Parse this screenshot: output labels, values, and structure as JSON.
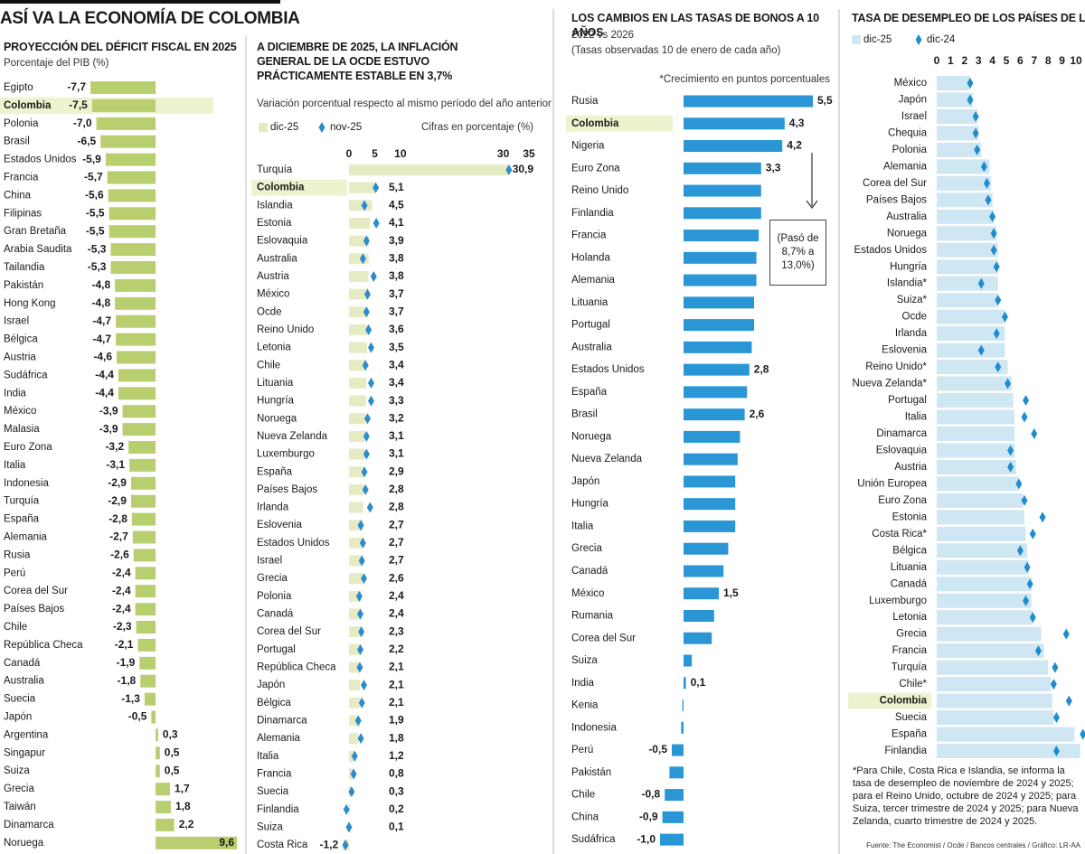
{
  "title": "ASÍ VA LA ECONOMÍA DE COLOMBIA",
  "source": "Fuente: The Economist / Ocde / Bancos centrales / Gráfico: LR-AA",
  "chart_data": [
    {
      "type": "bar",
      "orientation": "horizontal",
      "title": "PROYECCIÓN DEL DÉFICIT FISCAL EN 2025",
      "subtitle": "Porcentaje del PIB (%)",
      "highlight": "Colombia",
      "highlight_color": "#eef3cf",
      "color": "#b9cf6f",
      "categories": [
        "Egipto",
        "Colombia",
        "Polonia",
        "Brasil",
        "Estados Unidos",
        "Francia",
        "China",
        "Filipinas",
        "Gran Bretaña",
        "Arabia Saudita",
        "Tailandia",
        "Pakistán",
        "Hong Kong",
        "Israel",
        "Bélgica",
        "Austria",
        "Sudáfrica",
        "India",
        "México",
        "Malasia",
        "Euro Zona",
        "Italia",
        "Indonesia",
        "Turquía",
        "España",
        "Alemania",
        "Rusia",
        "Perú",
        "Corea del Sur",
        "Países Bajos",
        "Chile",
        "República Checa",
        "Canadá",
        "Australia",
        "Suecia",
        "Japón",
        "Argentina",
        "Singapur",
        "Suiza",
        "Grecia",
        "Taiwán",
        "Dinamarca",
        "Noruega"
      ],
      "values": [
        -7.7,
        -7.5,
        -7.0,
        -6.5,
        -5.9,
        -5.7,
        -5.6,
        -5.5,
        -5.5,
        -5.3,
        -5.3,
        -4.8,
        -4.8,
        -4.7,
        -4.7,
        -4.6,
        -4.4,
        -4.4,
        -3.9,
        -3.9,
        -3.2,
        -3.1,
        -2.9,
        -2.9,
        -2.8,
        -2.7,
        -2.6,
        -2.4,
        -2.4,
        -2.4,
        -2.3,
        -2.1,
        -1.9,
        -1.8,
        -1.3,
        -0.5,
        0.3,
        0.5,
        0.5,
        1.7,
        1.8,
        2.2,
        9.6
      ],
      "value_labels": [
        "-7,7",
        "-7,5",
        "-7,0",
        "-6,5",
        "-5,9",
        "-5,7",
        "-5,6",
        "-5,5",
        "-5,5",
        "-5,3",
        "-5,3",
        "-4,8",
        "-4,8",
        "-4,7",
        "-4,7",
        "-4,6",
        "-4,4",
        "-4,4",
        "-3,9",
        "-3,9",
        "-3,2",
        "-3,1",
        "-2,9",
        "-2,9",
        "-2,8",
        "-2,7",
        "-2,6",
        "-2,4",
        "-2,4",
        "-2,4",
        "-2,3",
        "-2,1",
        "-1,9",
        "-1,8",
        "-1,3",
        "-0,5",
        "0,3",
        "0,5",
        "0,5",
        "1,7",
        "1,8",
        "2,2",
        "9,6"
      ]
    },
    {
      "type": "bar",
      "orientation": "horizontal",
      "title": "A DICIEMBRE DE 2025, LA INFLACIÓN GENERAL DE LA OCDE ESTUVO PRÁCTICAMENTE ESTABLE EN 3,7%",
      "subtitle": "Variación porcentual respecto al mismo período del año anterior",
      "unit_label": "Cifras en porcentaje (%)",
      "highlight": "Colombia",
      "highlight_color": "#eef3cf",
      "xlim": [
        0,
        35
      ],
      "xticks": [
        0,
        5,
        10,
        30,
        35
      ],
      "categories": [
        "Turquía",
        "Colombia",
        "Islandia",
        "Estonia",
        "Eslovaquia",
        "Australia",
        "Austria",
        "México",
        "Ocde",
        "Reino Unido",
        "Letonia",
        "Chile",
        "Lituania",
        "Hungría",
        "Noruega",
        "Nueva Zelanda",
        "Luxemburgo",
        "España",
        "Países Bajos",
        "Irlanda",
        "Eslovenia",
        "Estados Unidos",
        "Israel",
        "Grecia",
        "Polonia",
        "Canadá",
        "Corea del Sur",
        "Portugal",
        "República Checa",
        "Japón",
        "Bélgica",
        "Dinamarca",
        "Alemania",
        "Italia",
        "Francia",
        "Suecia",
        "Finlandia",
        "Suiza",
        "Costa Rica"
      ],
      "series": [
        {
          "name": "dic-25",
          "color": "#e6ebc4",
          "marker": "bar",
          "values": [
            30.9,
            5.1,
            4.5,
            4.1,
            3.9,
            3.8,
            3.8,
            3.7,
            3.7,
            3.6,
            3.5,
            3.4,
            3.4,
            3.3,
            3.2,
            3.1,
            3.1,
            2.9,
            2.8,
            2.8,
            2.7,
            2.7,
            2.7,
            2.6,
            2.4,
            2.4,
            2.3,
            2.2,
            2.1,
            2.1,
            2.1,
            1.9,
            1.8,
            1.2,
            0.8,
            0.3,
            0.2,
            0.1,
            -1.2
          ],
          "value_labels": [
            "30,9",
            "5,1",
            "4,5",
            "4,1",
            "3,9",
            "3,8",
            "3,8",
            "3,7",
            "3,7",
            "3,6",
            "3,5",
            "3,4",
            "3,4",
            "3,3",
            "3,2",
            "3,1",
            "3,1",
            "2,9",
            "2,8",
            "2,8",
            "2,7",
            "2,7",
            "2,7",
            "2,6",
            "2,4",
            "2,4",
            "2,3",
            "2,2",
            "2,1",
            "2,1",
            "2,1",
            "1,9",
            "1,8",
            "1,2",
            "0,8",
            "0,3",
            "0,2",
            "0,1",
            "-1,2"
          ]
        },
        {
          "name": "nov-25",
          "color": "#2a8ccc",
          "marker": "diamond",
          "values": [
            31.1,
            5.2,
            3.0,
            5.3,
            3.4,
            2.7,
            4.8,
            3.6,
            3.4,
            3.8,
            4.3,
            3.2,
            4.3,
            4.3,
            3.6,
            3.4,
            3.4,
            3.0,
            3.2,
            4.1,
            2.3,
            2.7,
            2.5,
            2.9,
            2.0,
            2.2,
            2.4,
            2.2,
            2.1,
            2.9,
            2.5,
            1.8,
            2.3,
            1.1,
            0.9,
            0.5,
            -0.5,
            0.0,
            -0.7
          ]
        }
      ]
    },
    {
      "type": "bar",
      "orientation": "horizontal",
      "title": "LOS CAMBIOS EN LAS TASAS DE BONOS A 10 AÑOS",
      "subtitle": "2022 vs 2026",
      "note": "(Tasas observadas 10 de enero de cada año)",
      "unit_label": "*Crecimiento en puntos porcentuales",
      "annotation": "(Pasó de 8,7% a 13,0%)",
      "highlight": "Colombia",
      "highlight_color": "#eef3cf",
      "color": "#2a96d6",
      "categories": [
        "Rusia",
        "Colombia",
        "Nigeria",
        "Euro Zona",
        "Reino Unido",
        "Finlandia",
        "Francia",
        "Holanda",
        "Alemania",
        "Lituania",
        "Portugal",
        "Australia",
        "Estados Unidos",
        "España",
        "Brasil",
        "Noruega",
        "Nueva Zelanda",
        "Japón",
        "Hungría",
        "Italia",
        "Grecia",
        "Canadá",
        "México",
        "Rumania",
        "Corea del Sur",
        "Suiza",
        "India",
        "Kenia",
        "Indonesia",
        "Perú",
        "Pakistán",
        "Chile",
        "China",
        "Sudáfrica"
      ],
      "values": [
        5.5,
        4.3,
        4.2,
        3.3,
        3.3,
        3.3,
        3.2,
        3.1,
        3.1,
        3.0,
        3.0,
        2.9,
        2.8,
        2.7,
        2.6,
        2.4,
        2.3,
        2.2,
        2.2,
        2.2,
        1.9,
        1.7,
        1.5,
        1.3,
        1.2,
        0.35,
        0.1,
        -0.05,
        -0.1,
        -0.5,
        -0.6,
        -0.8,
        -0.9,
        -1.0
      ],
      "value_labels": [
        "5,5",
        "4,3",
        "4,2",
        "3,3",
        null,
        null,
        null,
        null,
        null,
        null,
        null,
        null,
        "2,8",
        null,
        "2,6",
        null,
        null,
        null,
        null,
        null,
        null,
        null,
        "1,5",
        null,
        null,
        null,
        "0,1",
        null,
        null,
        "-0,5",
        null,
        "-0,8",
        "-0,9",
        "-1,0"
      ]
    },
    {
      "type": "bar",
      "orientation": "horizontal",
      "title": "TASA DE DESEMPLEO DE LOS PAÍSES DE LA OCDE",
      "footnote": "*Para Chile, Costa Rica e Islandia, se informa la tasa de desempleo de noviembre de 2024 y 2025; para el Reino Unido, octubre de 2024 y 2025; para Suiza, tercer trimestre de 2024 y 2025; para Nueva Zelanda, cuarto trimestre de 2024 y 2025.",
      "highlight": "Colombia",
      "highlight_color": "#eef3cf",
      "xlim": [
        0,
        10
      ],
      "xticks": [
        0,
        1,
        2,
        3,
        4,
        5,
        6,
        7,
        8,
        9,
        10
      ],
      "categories": [
        "México",
        "Japón",
        "Israel",
        "Chequia",
        "Polonia",
        "Alemania",
        "Corea del Sur",
        "Países Bajos",
        "Australia",
        "Noruega",
        "Estados Unidos",
        "Hungría",
        "Islandia*",
        "Suiza*",
        "Ocde",
        "Irlanda",
        "Eslovenia",
        "Reino Unido*",
        "Nueva Zelanda*",
        "Portugal",
        "Italia",
        "Dinamarca",
        "Eslovaquia",
        "Austria",
        "Unión Europea",
        "Euro Zona",
        "Estonia",
        "Costa Rica*",
        "Bélgica",
        "Lituania",
        "Canadá",
        "Luxemburgo",
        "Letonia",
        "Grecia",
        "Francia",
        "Turquía",
        "Chile*",
        "Colombia",
        "Suecia",
        "España",
        "Finlandia"
      ],
      "series": [
        {
          "name": "dic-25",
          "color": "#cfe7f3",
          "marker": "bar",
          "values": [
            2.4,
            2.6,
            2.9,
            3.0,
            3.2,
            3.8,
            3.9,
            4.0,
            4.1,
            4.3,
            4.4,
            4.4,
            4.4,
            4.4,
            4.9,
            4.9,
            4.9,
            5.1,
            5.4,
            5.5,
            5.6,
            5.6,
            5.6,
            5.7,
            5.9,
            6.2,
            6.3,
            6.4,
            6.5,
            6.6,
            6.8,
            6.8,
            6.9,
            7.5,
            7.7,
            8.0,
            8.2,
            8.3,
            8.4,
            9.9,
            10.3
          ]
        },
        {
          "name": "dic-24",
          "color": "#1f8ccf",
          "marker": "diamond",
          "values": [
            2.4,
            2.4,
            2.8,
            2.8,
            2.9,
            3.4,
            3.6,
            3.7,
            4.0,
            4.1,
            4.1,
            4.3,
            3.2,
            4.4,
            4.9,
            4.3,
            3.2,
            4.4,
            5.1,
            6.4,
            6.3,
            7.0,
            5.3,
            5.3,
            5.9,
            6.3,
            7.6,
            6.9,
            6.0,
            6.5,
            6.7,
            6.4,
            6.9,
            9.3,
            7.3,
            8.5,
            8.4,
            9.5,
            8.6,
            10.5,
            8.6
          ]
        }
      ]
    }
  ]
}
